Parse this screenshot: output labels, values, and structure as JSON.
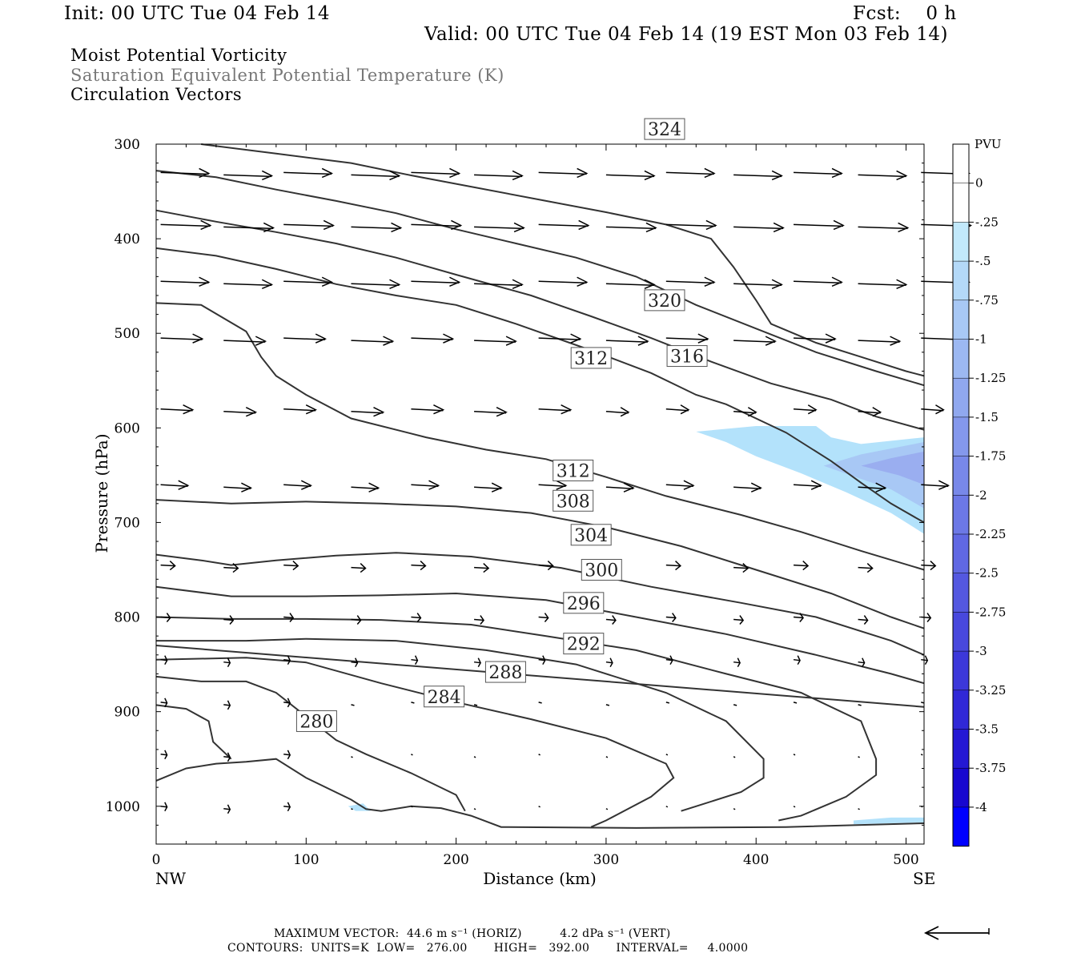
{
  "header": {
    "init": "Init: 00 UTC Tue 04 Feb 14",
    "fcst": "Fcst:    0 h",
    "valid": "Valid: 00 UTC Tue 04 Feb 14 (19 EST Mon 03 Feb 14)",
    "title_lines": [
      "Moist Potential Vorticity",
      "Saturation Equivalent Potential Temperature (K)",
      "Circulation Vectors"
    ]
  },
  "footer": {
    "max_vector": "MAXIMUM VECTOR:  44.6 m s⁻¹ (HORIZ)          4.2 dPa s⁻¹ (VERT)",
    "contours": "CONTOURS:  UNITS=K  LOW=   276.00       HIGH=   392.00       INTERVAL=     4.0000"
  },
  "colors": {
    "contour": "#333333",
    "vector": "#000000",
    "pv_shade_light": "#b3e2fb",
    "pv_shade_mid": "#a8c8f5",
    "pv_shade_dark": "#9aaef0"
  },
  "chart_data": {
    "type": "cross-section",
    "xlabel": "Distance (km)",
    "ylabel": "Pressure (hPa)",
    "xlim": [
      0,
      512
    ],
    "ylim": [
      1040,
      300
    ],
    "y_scale": "linear",
    "x_ticks": [
      0,
      100,
      200,
      300,
      400,
      500
    ],
    "y_ticks": [
      300,
      400,
      500,
      600,
      700,
      800,
      900,
      1000
    ],
    "x_end_labels": {
      "left": "NW",
      "right": "SE"
    },
    "colorbar": {
      "unit": "PVU",
      "labels": [
        "0",
        "-.25",
        "-.5",
        "-.75",
        "-1",
        "-1.25",
        "-1.5",
        "-1.75",
        "-2",
        "-2.25",
        "-2.5",
        "-2.75",
        "-3",
        "-3.25",
        "-3.5",
        "-3.75",
        "-4"
      ],
      "colors": [
        "#ffffff",
        "#ffffff",
        "#c2e9fb",
        "#b4d9f8",
        "#a8c8f5",
        "#9cb8f2",
        "#90a8ef",
        "#8498ec",
        "#7888e9",
        "#6c78e6",
        "#6068e3",
        "#5458e0",
        "#4848dd",
        "#3c38da",
        "#3028d7",
        "#2418d4",
        "#1808d0",
        "#0000ff"
      ]
    },
    "theta_e_contours": [
      {
        "value": 280,
        "label_pos": [
          107,
          910
        ],
        "points": [
          [
            0,
            973
          ],
          [
            20,
            960
          ],
          [
            40,
            955
          ],
          [
            60,
            953
          ],
          [
            80,
            950
          ],
          [
            100,
            970
          ],
          [
            130,
            993
          ],
          [
            140,
            1003
          ],
          [
            150,
            1005
          ],
          [
            170,
            1000
          ],
          [
            190,
            1002
          ],
          [
            210,
            1010
          ],
          [
            230,
            1022
          ],
          [
            320,
            1023
          ],
          [
            420,
            1022
          ],
          [
            512,
            1018
          ]
        ]
      },
      {
        "value": 280,
        "label_pos": null,
        "points": [
          [
            0,
            893
          ],
          [
            20,
            897
          ],
          [
            35,
            910
          ],
          [
            38,
            932
          ],
          [
            50,
            950
          ]
        ]
      },
      {
        "value": 284,
        "label_pos": [
          192,
          884
        ],
        "points": [
          [
            0,
            863
          ],
          [
            30,
            868
          ],
          [
            60,
            868
          ],
          [
            80,
            880
          ],
          [
            100,
            905
          ],
          [
            120,
            930
          ],
          [
            140,
            945
          ],
          [
            170,
            965
          ],
          [
            200,
            988
          ],
          [
            206,
            1005
          ]
        ]
      },
      {
        "value": 288,
        "label_pos": [
          233,
          858
        ],
        "points": [
          [
            0,
            845
          ],
          [
            60,
            843
          ],
          [
            100,
            848
          ],
          [
            150,
            870
          ],
          [
            200,
            890
          ],
          [
            250,
            908
          ],
          [
            300,
            928
          ],
          [
            340,
            955
          ],
          [
            345,
            970
          ],
          [
            330,
            990
          ],
          [
            300,
            1015
          ],
          [
            290,
            1022
          ]
        ]
      },
      {
        "value": 292,
        "label_pos": [
          285,
          828
        ],
        "points": [
          [
            0,
            825
          ],
          [
            60,
            825
          ],
          [
            100,
            823
          ],
          [
            160,
            825
          ],
          [
            220,
            835
          ],
          [
            280,
            850
          ],
          [
            340,
            880
          ],
          [
            380,
            910
          ],
          [
            405,
            950
          ],
          [
            405,
            970
          ],
          [
            390,
            985
          ],
          [
            360,
            1000
          ],
          [
            350,
            1005
          ]
        ]
      },
      {
        "value": 296,
        "label_pos": [
          285,
          785
        ],
        "points": [
          [
            0,
            800
          ],
          [
            50,
            802
          ],
          [
            100,
            802
          ],
          [
            150,
            803
          ],
          [
            210,
            808
          ],
          [
            260,
            820
          ],
          [
            320,
            835
          ],
          [
            380,
            860
          ],
          [
            430,
            880
          ],
          [
            470,
            910
          ],
          [
            480,
            950
          ],
          [
            480,
            967
          ],
          [
            460,
            990
          ],
          [
            430,
            1010
          ],
          [
            415,
            1015
          ]
        ]
      },
      {
        "value": 300,
        "label_pos": [
          297,
          750
        ],
        "points": [
          [
            0,
            768
          ],
          [
            50,
            778
          ],
          [
            100,
            778
          ],
          [
            150,
            777
          ],
          [
            200,
            775
          ],
          [
            260,
            782
          ],
          [
            320,
            800
          ],
          [
            380,
            818
          ],
          [
            440,
            840
          ],
          [
            490,
            860
          ],
          [
            512,
            870
          ]
        ]
      },
      {
        "value": 300,
        "label_pos": null,
        "points": [
          [
            0,
            830
          ],
          [
            512,
            895
          ]
        ]
      },
      {
        "value": 304,
        "label_pos": [
          290,
          713
        ],
        "points": [
          [
            0,
            734
          ],
          [
            30,
            740
          ],
          [
            50,
            745
          ],
          [
            80,
            740
          ],
          [
            120,
            735
          ],
          [
            160,
            732
          ],
          [
            210,
            736
          ],
          [
            270,
            748
          ],
          [
            330,
            768
          ],
          [
            390,
            785
          ],
          [
            440,
            800
          ],
          [
            490,
            825
          ],
          [
            512,
            840
          ]
        ]
      },
      {
        "value": 308,
        "label_pos": [
          278,
          677
        ],
        "points": [
          [
            0,
            676
          ],
          [
            50,
            680
          ],
          [
            100,
            678
          ],
          [
            150,
            680
          ],
          [
            200,
            683
          ],
          [
            250,
            690
          ],
          [
            300,
            705
          ],
          [
            350,
            725
          ],
          [
            400,
            750
          ],
          [
            450,
            775
          ],
          [
            490,
            800
          ],
          [
            512,
            812
          ]
        ]
      },
      {
        "value": 312,
        "label_pos": [
          278,
          645
        ],
        "points": [
          [
            0,
            468
          ],
          [
            30,
            470
          ],
          [
            60,
            498
          ],
          [
            70,
            525
          ],
          [
            80,
            545
          ],
          [
            100,
            565
          ],
          [
            130,
            590
          ],
          [
            180,
            610
          ],
          [
            220,
            623
          ],
          [
            260,
            633
          ],
          [
            300,
            652
          ],
          [
            340,
            672
          ],
          [
            390,
            692
          ],
          [
            430,
            710
          ],
          [
            470,
            730
          ],
          [
            512,
            750
          ]
        ]
      },
      {
        "value": 312,
        "label_pos": [
          290,
          526
        ],
        "points": [
          [
            0,
            410
          ],
          [
            40,
            418
          ],
          [
            80,
            432
          ],
          [
            120,
            448
          ],
          [
            160,
            460
          ],
          [
            200,
            470
          ],
          [
            240,
            490
          ],
          [
            290,
            518
          ],
          [
            330,
            542
          ],
          [
            360,
            565
          ],
          [
            380,
            575
          ],
          [
            420,
            605
          ],
          [
            450,
            635
          ],
          [
            470,
            658
          ],
          [
            490,
            680
          ],
          [
            512,
            700
          ]
        ]
      },
      {
        "value": 316,
        "label_pos": [
          354,
          524
        ],
        "points": [
          [
            0,
            370
          ],
          [
            40,
            382
          ],
          [
            80,
            393
          ],
          [
            120,
            405
          ],
          [
            160,
            420
          ],
          [
            200,
            438
          ],
          [
            250,
            460
          ],
          [
            290,
            482
          ],
          [
            330,
            505
          ],
          [
            370,
            530
          ],
          [
            410,
            553
          ],
          [
            450,
            570
          ],
          [
            480,
            588
          ],
          [
            512,
            602
          ]
        ]
      },
      {
        "value": 320,
        "label_pos": [
          339,
          465
        ],
        "points": [
          [
            0,
            328
          ],
          [
            40,
            335
          ],
          [
            80,
            348
          ],
          [
            120,
            360
          ],
          [
            160,
            373
          ],
          [
            200,
            390
          ],
          [
            240,
            405
          ],
          [
            280,
            420
          ],
          [
            320,
            440
          ],
          [
            360,
            470
          ],
          [
            400,
            495
          ],
          [
            440,
            520
          ],
          [
            480,
            540
          ],
          [
            512,
            555
          ]
        ]
      },
      {
        "value": 324,
        "label_pos": [
          339,
          284
        ],
        "points": [
          [
            30,
            300
          ],
          [
            80,
            310
          ],
          [
            130,
            320
          ],
          [
            170,
            333
          ],
          [
            210,
            345
          ],
          [
            260,
            360
          ],
          [
            300,
            372
          ],
          [
            340,
            385
          ],
          [
            370,
            400
          ],
          [
            385,
            430
          ],
          [
            400,
            465
          ],
          [
            410,
            490
          ],
          [
            440,
            510
          ],
          [
            470,
            525
          ],
          [
            500,
            540
          ],
          [
            512,
            545
          ]
        ]
      }
    ],
    "pv_shading": [
      {
        "level": "-0.25",
        "polygon": [
          [
            360,
            604
          ],
          [
            400,
            598
          ],
          [
            440,
            598
          ],
          [
            450,
            610
          ],
          [
            470,
            617
          ],
          [
            512,
            610
          ],
          [
            512,
            712
          ],
          [
            490,
            690
          ],
          [
            460,
            668
          ],
          [
            430,
            648
          ],
          [
            400,
            630
          ],
          [
            380,
            615
          ]
        ]
      },
      {
        "level": "-0.5",
        "polygon": [
          [
            445,
            640
          ],
          [
            470,
            628
          ],
          [
            512,
            615
          ],
          [
            512,
            685
          ],
          [
            490,
            665
          ]
        ]
      },
      {
        "level": "-0.75",
        "polygon": [
          [
            470,
            640
          ],
          [
            490,
            632
          ],
          [
            512,
            625
          ],
          [
            512,
            660
          ],
          [
            495,
            650
          ]
        ]
      },
      {
        "level": "-0.25",
        "polygon": [
          [
            128,
            1000
          ],
          [
            138,
            997
          ],
          [
            143,
            1005
          ],
          [
            133,
            1005
          ]
        ]
      },
      {
        "level": "-0.25",
        "polygon": [
          [
            465,
            1015
          ],
          [
            490,
            1012
          ],
          [
            512,
            1012
          ],
          [
            512,
            1017
          ],
          [
            465,
            1019
          ]
        ]
      }
    ],
    "vector_grid": {
      "x": [
        3,
        45,
        85,
        130,
        170,
        212,
        255,
        300,
        340,
        385,
        425,
        468,
        510
      ],
      "levels": [
        330,
        385,
        445,
        505,
        580,
        660,
        745,
        800,
        845,
        890,
        945,
        1000
      ]
    }
  }
}
